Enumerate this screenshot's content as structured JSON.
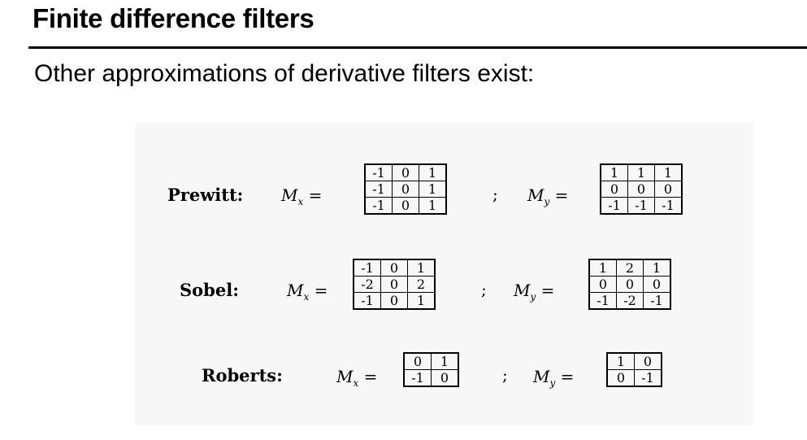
{
  "slide": {
    "title": "Finite difference filters",
    "subtitle": "Other approximations of derivative filters exist:"
  },
  "figure": {
    "separator": ";",
    "equals": "=",
    "mx_symbol": "M",
    "mx_sub": "x",
    "my_symbol": "M",
    "my_sub": "y",
    "filters": [
      {
        "name": "Prewitt:",
        "mx": [
          [
            "-1",
            "0",
            "1"
          ],
          [
            "-1",
            "0",
            "1"
          ],
          [
            "-1",
            "0",
            "1"
          ]
        ],
        "my": [
          [
            "1",
            "1",
            "1"
          ],
          [
            "0",
            "0",
            "0"
          ],
          [
            "-1",
            "-1",
            "-1"
          ]
        ]
      },
      {
        "name": "Sobel:",
        "mx": [
          [
            "-1",
            "0",
            "1"
          ],
          [
            "-2",
            "0",
            "2"
          ],
          [
            "-1",
            "0",
            "1"
          ]
        ],
        "my": [
          [
            "1",
            "2",
            "1"
          ],
          [
            "0",
            "0",
            "0"
          ],
          [
            "-1",
            "-2",
            "-1"
          ]
        ]
      },
      {
        "name": "Roberts:",
        "mx": [
          [
            "0",
            "1"
          ],
          [
            "-1",
            "0"
          ]
        ],
        "my": [
          [
            "1",
            "0"
          ],
          [
            "0",
            "-1"
          ]
        ]
      }
    ]
  }
}
